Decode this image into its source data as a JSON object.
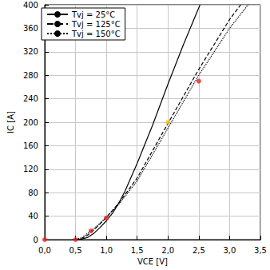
{
  "chart_data": {
    "type": "line",
    "x_label": "VCE [V]",
    "y_label": "IC [A]",
    "xlim": [
      0,
      3.5
    ],
    "xticks": [
      {
        "value": 0,
        "label": "0,0"
      },
      {
        "value": 0.5,
        "label": "0,5"
      },
      {
        "value": 1,
        "label": "1,0"
      },
      {
        "value": 1.5,
        "label": "1,5"
      },
      {
        "value": 2,
        "label": "2,0"
      },
      {
        "value": 2.5,
        "label": "2,5"
      },
      {
        "value": 3,
        "label": "3,0"
      },
      {
        "value": 3.5,
        "label": "3,5"
      }
    ],
    "ylim": [
      0,
      400
    ],
    "yticks": [
      0,
      40,
      80,
      120,
      160,
      200,
      240,
      280,
      320,
      360,
      400
    ],
    "grid": true,
    "legend": "upper left",
    "series": [
      {
        "name": "Tvj = 25°C",
        "color": "#000000",
        "line_style": "solid",
        "x": [
          0.5,
          0.6,
          0.7,
          0.8,
          0.9,
          1.0,
          1.1,
          1.2,
          1.3,
          1.5,
          1.75,
          2.0,
          2.25,
          2.52
        ],
        "values": [
          0,
          1,
          4,
          11,
          21,
          32,
          45,
          62,
          82,
          130,
          195,
          265,
          332,
          400
        ]
      },
      {
        "name": "Tvj = 125°C",
        "color": "#000000",
        "line_style": "dashed",
        "x": [
          0.5,
          0.6,
          0.7,
          0.8,
          0.9,
          1.0,
          1.2,
          1.5,
          2.0,
          2.5,
          3.0,
          3.18
        ],
        "values": [
          0,
          2,
          8,
          17,
          27,
          38,
          62,
          105,
          198,
          290,
          375,
          400
        ]
      },
      {
        "name": "Tvj = 150°C",
        "color": "#000000",
        "line_style": "dotted",
        "x": [
          0.45,
          0.6,
          0.8,
          1.0,
          1.2,
          1.5,
          2.0,
          2.5,
          3.0,
          3.3
        ],
        "values": [
          0,
          3,
          19,
          38,
          60,
          100,
          190,
          280,
          360,
          400
        ]
      },
      {
        "type": "scatter",
        "color": "#e8261e",
        "marker": "circle",
        "x": [
          0,
          0.5,
          0.75,
          1.0,
          2.5
        ],
        "values": [
          0,
          0,
          15,
          37,
          270
        ]
      },
      {
        "type": "scatter",
        "color": "#f5c400",
        "marker": "circle",
        "x": [
          2.0
        ],
        "values": [
          200
        ]
      }
    ]
  }
}
